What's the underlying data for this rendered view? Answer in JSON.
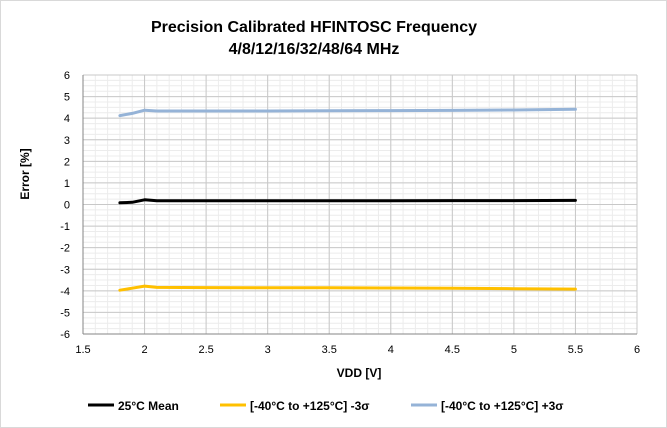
{
  "chart_data": {
    "type": "line",
    "title_line1": "Precision Calibrated HFINTOSC Frequency",
    "title_line2": "4/8/12/16/32/48/64 MHz",
    "xlabel": "VDD [V]",
    "ylabel": "Error [%]",
    "xlim": [
      1.5,
      6
    ],
    "ylim": [
      -6,
      6
    ],
    "x_ticks": [
      "1.5",
      "2",
      "2.5",
      "3",
      "3.5",
      "4",
      "4.5",
      "5",
      "5.5",
      "6"
    ],
    "y_ticks": [
      "-6",
      "-5",
      "-4",
      "-3",
      "-2",
      "-1",
      "0",
      "1",
      "2",
      "3",
      "4",
      "5",
      "6"
    ],
    "grid": true,
    "legend_position": "bottom",
    "series": [
      {
        "name": "25°C Mean",
        "color": "#000000",
        "x": [
          1.8,
          1.9,
          2.0,
          2.1,
          2.5,
          3.0,
          3.5,
          4.0,
          4.5,
          5.0,
          5.5
        ],
        "y": [
          0.08,
          0.1,
          0.22,
          0.17,
          0.17,
          0.17,
          0.17,
          0.17,
          0.18,
          0.18,
          0.19
        ]
      },
      {
        "name": "[-40°C to +125°C]  -3σ",
        "color": "#ffc000",
        "x": [
          1.8,
          1.9,
          2.0,
          2.1,
          2.5,
          3.0,
          3.5,
          4.0,
          4.5,
          5.0,
          5.5
        ],
        "y": [
          -3.97,
          -3.88,
          -3.78,
          -3.84,
          -3.85,
          -3.86,
          -3.86,
          -3.87,
          -3.88,
          -3.9,
          -3.92
        ]
      },
      {
        "name": "[-40°C to +125°C] +3σ",
        "color": "#95b3d7",
        "x": [
          1.8,
          1.9,
          2.0,
          2.1,
          2.5,
          3.0,
          3.5,
          4.0,
          4.5,
          5.0,
          5.5
        ],
        "y": [
          4.12,
          4.22,
          4.37,
          4.33,
          4.33,
          4.33,
          4.34,
          4.35,
          4.36,
          4.38,
          4.41
        ]
      }
    ]
  }
}
